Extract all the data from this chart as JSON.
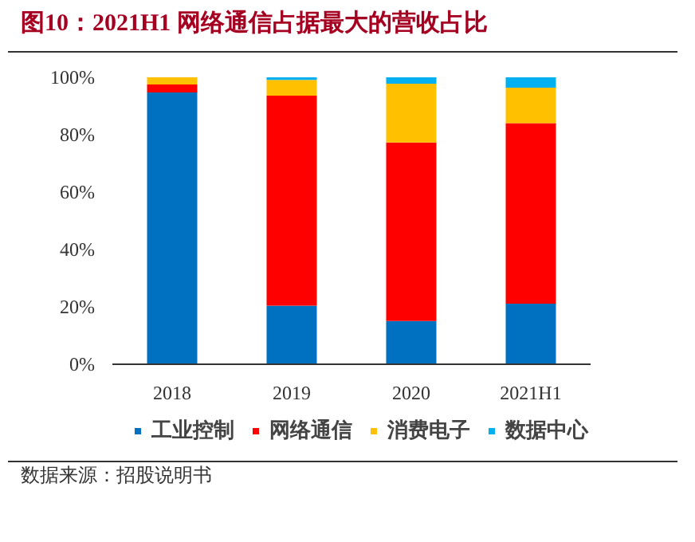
{
  "chart_data": {
    "type": "bar",
    "stacked": true,
    "title": "图10：2021H1 网络通信占据最大的营收占比",
    "categories": [
      "2018",
      "2019",
      "2020",
      "2021H1"
    ],
    "series": [
      {
        "name": "工业控制",
        "color": "#0070c0",
        "values": [
          94.7,
          20.4,
          15.1,
          21.1
        ]
      },
      {
        "name": "网络通信",
        "color": "#ff0000",
        "values": [
          2.8,
          73.2,
          62.2,
          62.9
        ]
      },
      {
        "name": "消费电子",
        "color": "#ffc000",
        "values": [
          2.5,
          5.5,
          20.5,
          12.4
        ]
      },
      {
        "name": "数据中心",
        "color": "#00b0f0",
        "values": [
          0,
          0.9,
          2.2,
          3.6
        ]
      }
    ],
    "ylim": [
      0,
      100
    ],
    "yticks": [
      {
        "value": 0,
        "label": "0%"
      },
      {
        "value": 20,
        "label": "20%"
      },
      {
        "value": 40,
        "label": "40%"
      },
      {
        "value": 60,
        "label": "60%"
      },
      {
        "value": 80,
        "label": "80%"
      },
      {
        "value": 100,
        "label": "100%"
      }
    ],
    "grid": false,
    "legend": "bottom",
    "annotations": [
      "数据来源：招股说明书"
    ]
  }
}
